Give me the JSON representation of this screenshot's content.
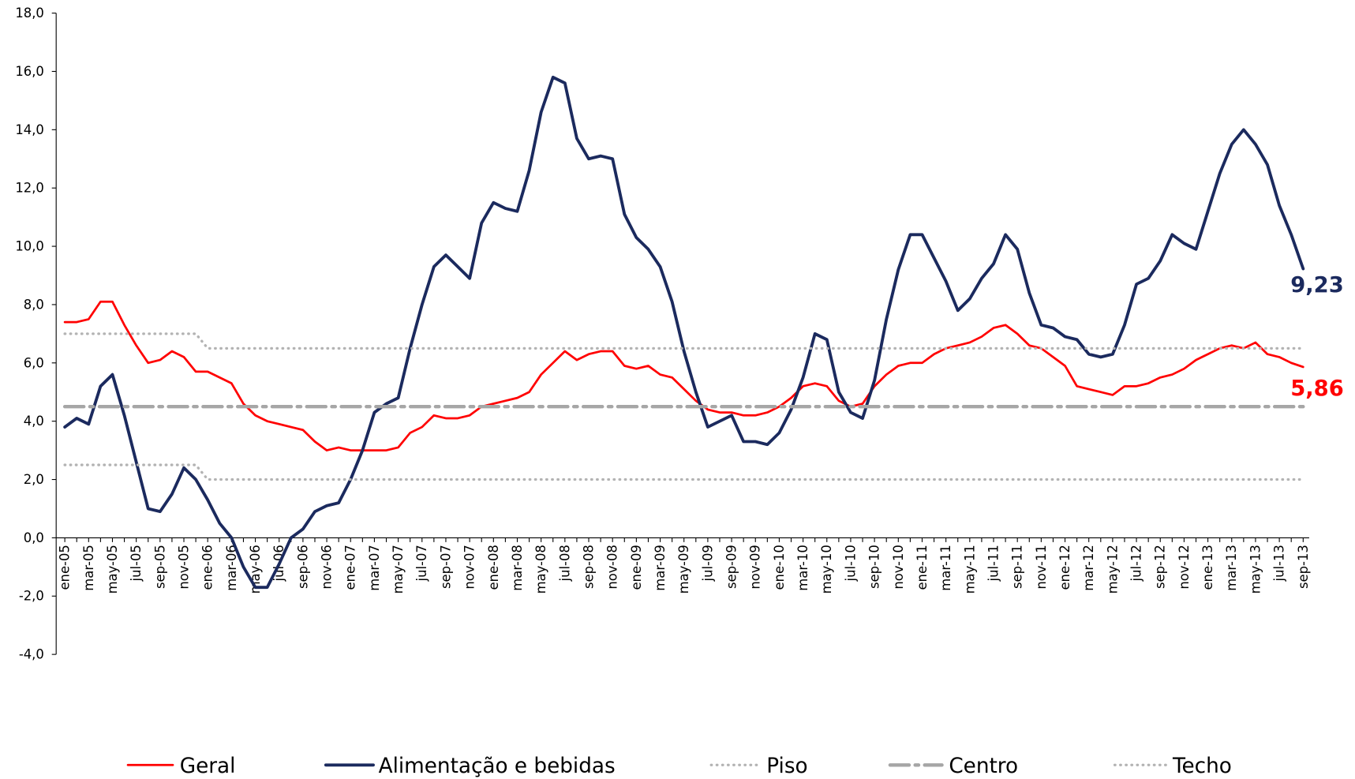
{
  "chart_data": {
    "type": "line",
    "categories": [
      "ene-05",
      null,
      "mar-05",
      null,
      "may-05",
      null,
      "jul-05",
      null,
      "sep-05",
      null,
      "nov-05",
      null,
      "ene-06",
      null,
      "mar-06",
      null,
      "may-06",
      null,
      "jul-06",
      null,
      "sep-06",
      null,
      "nov-06",
      null,
      "ene-07",
      null,
      "mar-07",
      null,
      "may-07",
      null,
      "jul-07",
      null,
      "sep-07",
      null,
      "nov-07",
      null,
      "ene-08",
      null,
      "mar-08",
      null,
      "may-08",
      null,
      "jul-08",
      null,
      "sep-08",
      null,
      "nov-08",
      null,
      "ene-09",
      null,
      "mar-09",
      null,
      "may-09",
      null,
      "jul-09",
      null,
      "sep-09",
      null,
      "nov-09",
      null,
      "ene-10",
      null,
      "mar-10",
      null,
      "may-10",
      null,
      "jul-10",
      null,
      "sep-10",
      null,
      "nov-10",
      null,
      "ene-11",
      null,
      "mar-11",
      null,
      "may-11",
      null,
      "jul-11",
      null,
      "sep-11",
      null,
      "nov-11",
      null,
      "ene-12",
      null,
      "mar-12",
      null,
      "may-12",
      null,
      "jul-12",
      null,
      "sep-12",
      null,
      "nov-12",
      null,
      "ene-13",
      null,
      "mar-13",
      null,
      "may-13",
      null,
      "jul-13",
      null,
      "sep-13"
    ],
    "ylim": [
      -4,
      18
    ],
    "yticks": [
      {
        "value": -4,
        "label": "-4,0"
      },
      {
        "value": -2,
        "label": "-2,0"
      },
      {
        "value": 0,
        "label": "0,0"
      },
      {
        "value": 2,
        "label": "2,0"
      },
      {
        "value": 4,
        "label": "4,0"
      },
      {
        "value": 6,
        "label": "6,0"
      },
      {
        "value": 8,
        "label": "8,0"
      },
      {
        "value": 10,
        "label": "10,0"
      },
      {
        "value": 12,
        "label": "12,0"
      },
      {
        "value": 14,
        "label": "14,0"
      },
      {
        "value": 16,
        "label": "16,0"
      },
      {
        "value": 18,
        "label": "18,0"
      }
    ],
    "series": [
      {
        "name": "Geral",
        "color": "#ff0000",
        "dash": "solid",
        "width": 2.5,
        "values": [
          7.4,
          7.4,
          7.5,
          8.1,
          8.1,
          7.3,
          6.6,
          6.0,
          6.1,
          6.4,
          6.2,
          5.7,
          5.7,
          5.5,
          5.3,
          4.6,
          4.2,
          4.0,
          3.9,
          3.8,
          3.7,
          3.3,
          3.0,
          3.1,
          3.0,
          3.0,
          3.0,
          3.0,
          3.1,
          3.6,
          3.8,
          4.2,
          4.1,
          4.1,
          4.2,
          4.5,
          4.6,
          4.7,
          4.8,
          5.0,
          5.6,
          6.0,
          6.4,
          6.1,
          6.3,
          6.4,
          6.4,
          5.9,
          5.8,
          5.9,
          5.6,
          5.5,
          5.1,
          4.7,
          4.4,
          4.3,
          4.3,
          4.2,
          4.2,
          4.3,
          4.5,
          4.8,
          5.2,
          5.3,
          5.2,
          4.7,
          4.5,
          4.6,
          5.2,
          5.6,
          5.9,
          6.0,
          6.0,
          6.3,
          6.5,
          6.6,
          6.7,
          6.9,
          7.2,
          7.3,
          7.0,
          6.6,
          6.5,
          6.2,
          5.9,
          5.2,
          5.1,
          5.0,
          4.9,
          5.2,
          5.2,
          5.3,
          5.5,
          5.6,
          5.8,
          6.1,
          6.3,
          6.5,
          6.6,
          6.5,
          6.7,
          6.3,
          6.2,
          6.0,
          5.86
        ],
        "value_labels": [
          null,
          null,
          null,
          null,
          null,
          null,
          null,
          null,
          null,
          null,
          null,
          null,
          null,
          null,
          null,
          null,
          null,
          null,
          null,
          null,
          null,
          null,
          null,
          null,
          null,
          null,
          null,
          null,
          null,
          null,
          null,
          null,
          null,
          null,
          null,
          null,
          null,
          null,
          null,
          null,
          null,
          null,
          null,
          null,
          null,
          null,
          null,
          null,
          null,
          null,
          null,
          null,
          null,
          null,
          null,
          null,
          null,
          null,
          null,
          null,
          null,
          null,
          null,
          null,
          null,
          null,
          null,
          null,
          null,
          null,
          null,
          null,
          null,
          null,
          null,
          null,
          null,
          null,
          null,
          null,
          null,
          null,
          null,
          null,
          null,
          null,
          null,
          null,
          null,
          null,
          null,
          null,
          null,
          null,
          null,
          null,
          null,
          null,
          null,
          null,
          null,
          null,
          null,
          null,
          "5,86"
        ]
      },
      {
        "name": "Alimentação e bebidas",
        "color": "#1b2a5e",
        "dash": "solid",
        "width": 3.5,
        "values": [
          3.8,
          4.1,
          3.9,
          5.2,
          5.6,
          4.2,
          2.6,
          1.0,
          0.9,
          1.5,
          2.4,
          2.0,
          1.3,
          0.5,
          0.0,
          -1.0,
          -1.7,
          -1.7,
          -0.9,
          0.0,
          0.3,
          0.9,
          1.1,
          1.2,
          2.0,
          3.0,
          4.3,
          4.6,
          4.8,
          6.5,
          8.0,
          9.3,
          9.7,
          9.3,
          8.9,
          10.8,
          11.5,
          11.3,
          11.2,
          12.6,
          14.6,
          15.8,
          15.6,
          13.7,
          13.0,
          13.1,
          13.0,
          11.1,
          10.3,
          9.9,
          9.3,
          8.1,
          6.4,
          5.0,
          3.8,
          4.0,
          4.2,
          3.3,
          3.3,
          3.2,
          3.6,
          4.4,
          5.5,
          7.0,
          6.8,
          5.0,
          4.3,
          4.1,
          5.4,
          7.5,
          9.2,
          10.4,
          10.4,
          9.6,
          8.8,
          7.8,
          8.2,
          8.9,
          9.4,
          10.4,
          9.9,
          8.4,
          7.3,
          7.2,
          6.9,
          6.8,
          6.3,
          6.2,
          6.3,
          7.3,
          8.7,
          8.9,
          9.5,
          10.4,
          10.1,
          9.9,
          11.2,
          12.5,
          13.5,
          14.0,
          13.5,
          12.8,
          11.4,
          10.4,
          9.23
        ],
        "value_labels": [
          null,
          null,
          null,
          null,
          null,
          null,
          null,
          null,
          null,
          null,
          null,
          null,
          null,
          null,
          null,
          null,
          null,
          null,
          null,
          null,
          null,
          null,
          null,
          null,
          null,
          null,
          null,
          null,
          null,
          null,
          null,
          null,
          null,
          null,
          null,
          null,
          null,
          null,
          null,
          null,
          null,
          null,
          null,
          null,
          null,
          null,
          null,
          null,
          null,
          null,
          null,
          null,
          null,
          null,
          null,
          null,
          null,
          null,
          null,
          null,
          null,
          null,
          null,
          null,
          null,
          null,
          null,
          null,
          null,
          null,
          null,
          null,
          null,
          null,
          null,
          null,
          null,
          null,
          null,
          null,
          null,
          null,
          null,
          null,
          null,
          null,
          null,
          null,
          null,
          null,
          null,
          null,
          null,
          null,
          null,
          null,
          null,
          null,
          null,
          null,
          null,
          null,
          null,
          null,
          "9,23"
        ]
      },
      {
        "name": "Piso",
        "color": "#b3b3b3",
        "dash": "dotted",
        "width": 3,
        "values": [
          2.5,
          2.5,
          2.5,
          2.5,
          2.5,
          2.5,
          2.5,
          2.5,
          2.5,
          2.5,
          2.5,
          2.5,
          2,
          2,
          2,
          2,
          2,
          2,
          2,
          2,
          2,
          2,
          2,
          2,
          2,
          2,
          2,
          2,
          2,
          2,
          2,
          2,
          2,
          2,
          2,
          2,
          2,
          2,
          2,
          2,
          2,
          2,
          2,
          2,
          2,
          2,
          2,
          2,
          2,
          2,
          2,
          2,
          2,
          2,
          2,
          2,
          2,
          2,
          2,
          2,
          2,
          2,
          2,
          2,
          2,
          2,
          2,
          2,
          2,
          2,
          2,
          2,
          2,
          2,
          2,
          2,
          2,
          2,
          2,
          2,
          2,
          2,
          2,
          2,
          2,
          2,
          2,
          2,
          2,
          2,
          2,
          2,
          2,
          2,
          2,
          2,
          2,
          2,
          2,
          2,
          2,
          2,
          2,
          2,
          2
        ]
      },
      {
        "name": "Centro",
        "color": "#a6a6a6",
        "dash": "dashdot",
        "width": 4,
        "values": [
          4.5,
          4.5,
          4.5,
          4.5,
          4.5,
          4.5,
          4.5,
          4.5,
          4.5,
          4.5,
          4.5,
          4.5,
          4.5,
          4.5,
          4.5,
          4.5,
          4.5,
          4.5,
          4.5,
          4.5,
          4.5,
          4.5,
          4.5,
          4.5,
          4.5,
          4.5,
          4.5,
          4.5,
          4.5,
          4.5,
          4.5,
          4.5,
          4.5,
          4.5,
          4.5,
          4.5,
          4.5,
          4.5,
          4.5,
          4.5,
          4.5,
          4.5,
          4.5,
          4.5,
          4.5,
          4.5,
          4.5,
          4.5,
          4.5,
          4.5,
          4.5,
          4.5,
          4.5,
          4.5,
          4.5,
          4.5,
          4.5,
          4.5,
          4.5,
          4.5,
          4.5,
          4.5,
          4.5,
          4.5,
          4.5,
          4.5,
          4.5,
          4.5,
          4.5,
          4.5,
          4.5,
          4.5,
          4.5,
          4.5,
          4.5,
          4.5,
          4.5,
          4.5,
          4.5,
          4.5,
          4.5,
          4.5,
          4.5,
          4.5,
          4.5,
          4.5,
          4.5,
          4.5,
          4.5,
          4.5,
          4.5,
          4.5,
          4.5,
          4.5,
          4.5,
          4.5,
          4.5,
          4.5,
          4.5,
          4.5,
          4.5,
          4.5,
          4.5,
          4.5,
          4.5
        ]
      },
      {
        "name": "Techo",
        "color": "#b3b3b3",
        "dash": "dotted",
        "width": 3,
        "values": [
          7,
          7,
          7,
          7,
          7,
          7,
          7,
          7,
          7,
          7,
          7,
          7,
          6.5,
          6.5,
          6.5,
          6.5,
          6.5,
          6.5,
          6.5,
          6.5,
          6.5,
          6.5,
          6.5,
          6.5,
          6.5,
          6.5,
          6.5,
          6.5,
          6.5,
          6.5,
          6.5,
          6.5,
          6.5,
          6.5,
          6.5,
          6.5,
          6.5,
          6.5,
          6.5,
          6.5,
          6.5,
          6.5,
          6.5,
          6.5,
          6.5,
          6.5,
          6.5,
          6.5,
          6.5,
          6.5,
          6.5,
          6.5,
          6.5,
          6.5,
          6.5,
          6.5,
          6.5,
          6.5,
          6.5,
          6.5,
          6.5,
          6.5,
          6.5,
          6.5,
          6.5,
          6.5,
          6.5,
          6.5,
          6.5,
          6.5,
          6.5,
          6.5,
          6.5,
          6.5,
          6.5,
          6.5,
          6.5,
          6.5,
          6.5,
          6.5,
          6.5,
          6.5,
          6.5,
          6.5,
          6.5,
          6.5,
          6.5,
          6.5,
          6.5,
          6.5,
          6.5,
          6.5,
          6.5,
          6.5,
          6.5,
          6.5,
          6.5,
          6.5,
          6.5,
          6.5,
          6.5,
          6.5,
          6.5,
          6.5,
          6.5
        ]
      }
    ],
    "legend": "bottom"
  }
}
